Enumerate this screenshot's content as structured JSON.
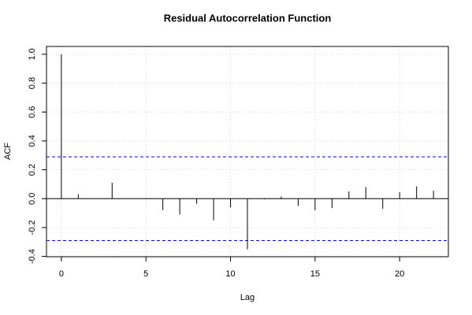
{
  "chart_data": {
    "type": "acf",
    "title": "Residual Autocorrelation Function",
    "x_label": "Lag",
    "y_label": "ACF",
    "x": [
      0,
      1,
      2,
      3,
      4,
      5,
      6,
      7,
      8,
      9,
      10,
      11,
      12,
      13,
      14,
      15,
      16,
      17,
      18,
      19,
      20,
      21,
      22
    ],
    "values": [
      1,
      0.03,
      0.0,
      0.11,
      0.0,
      0.005,
      -0.08,
      -0.11,
      -0.035,
      -0.15,
      -0.06,
      -0.35,
      -0.005,
      0.015,
      -0.05,
      -0.08,
      -0.065,
      0.05,
      0.08,
      -0.07,
      0.045,
      0.085,
      0.055
    ],
    "color": "#000000",
    "conf_limits": [
      0.29,
      -0.29
    ],
    "conf_color": "#0000ff",
    "xlim": [
      -0.88,
      22.88
    ],
    "ylim": [
      -0.402,
      1.054
    ],
    "xticks": [
      0,
      5,
      10,
      15,
      20
    ],
    "yticks": [
      -0.4,
      -0.2,
      {
        "value": 0,
        "label": "0.0"
      },
      0.2,
      0.4,
      0.6,
      0.8,
      {
        "value": 1,
        "label": "1.0"
      }
    ],
    "grid": true
  }
}
